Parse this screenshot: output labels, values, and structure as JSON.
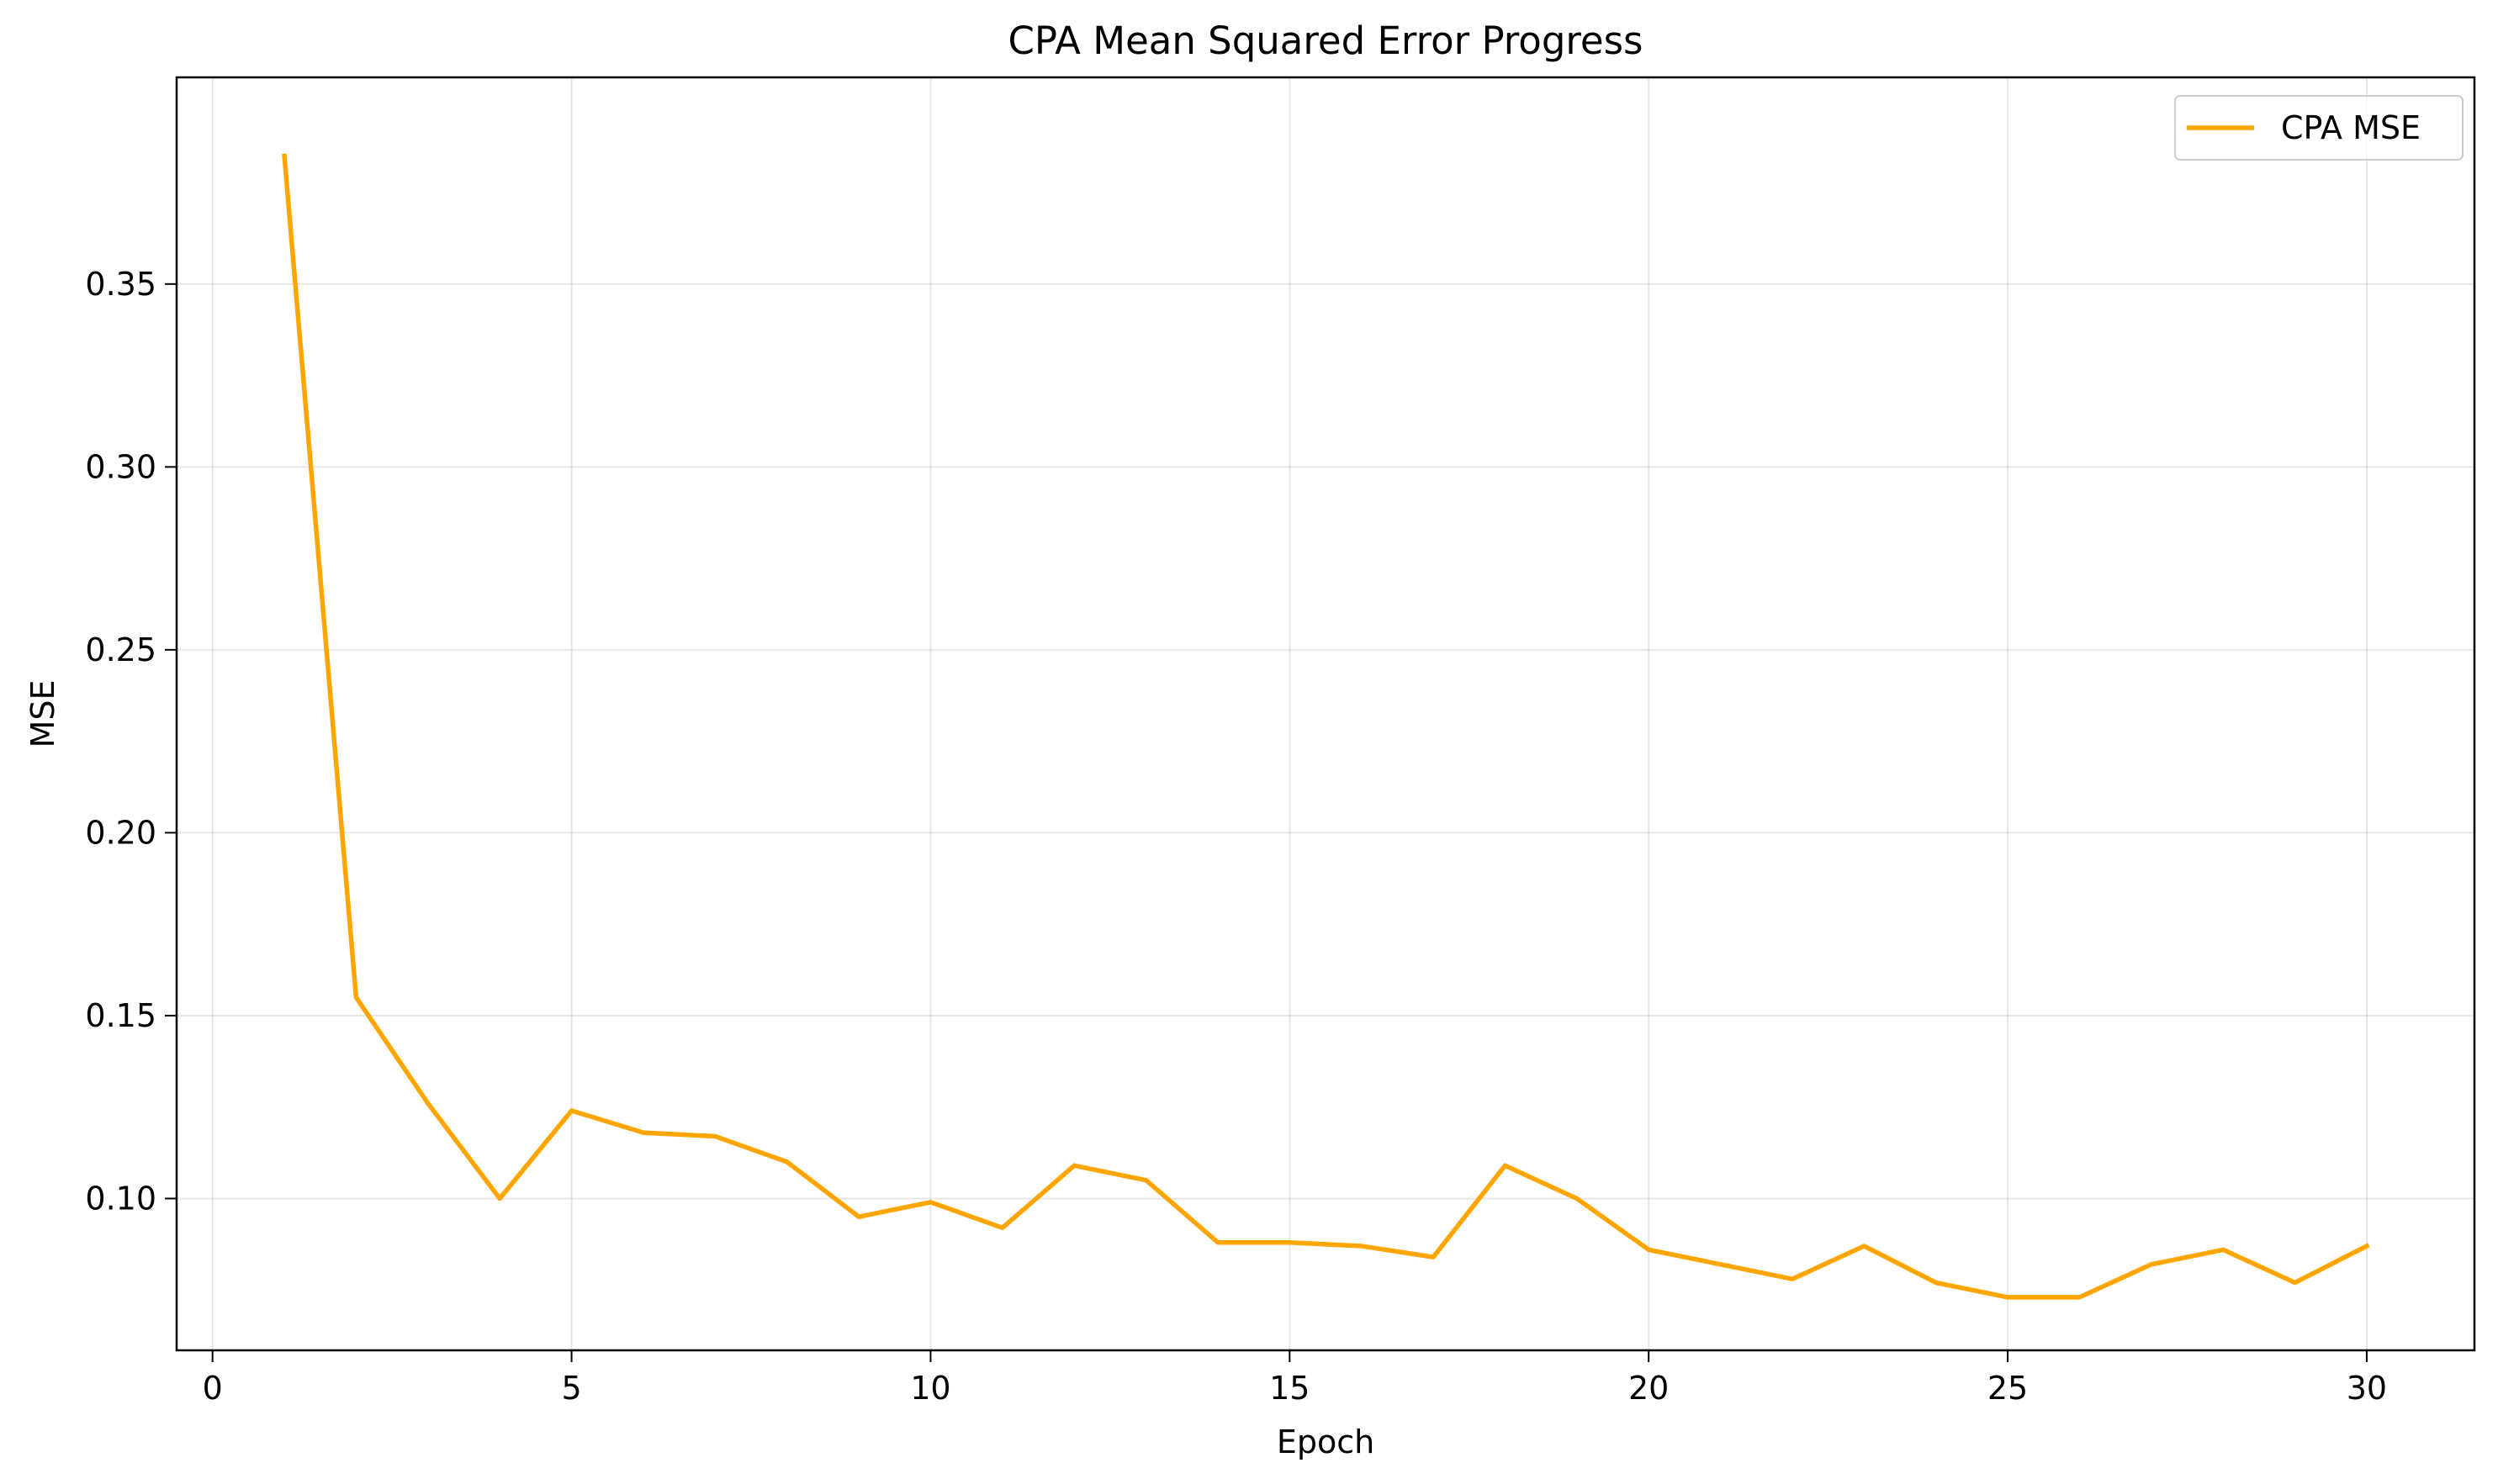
{
  "chart_data": {
    "type": "line",
    "title": "CPA Mean Squared Error Progress",
    "xlabel": "Epoch",
    "ylabel": "MSE",
    "xlim": [
      -0.5,
      31.5
    ],
    "ylim": [
      0.0585,
      0.4065
    ],
    "xticks": [
      0,
      5,
      10,
      15,
      20,
      25,
      30
    ],
    "xtick_labels": [
      "0",
      "5",
      "10",
      "15",
      "20",
      "25",
      "30"
    ],
    "yticks": [
      0.1,
      0.15,
      0.2,
      0.25,
      0.3,
      0.35
    ],
    "ytick_labels": [
      "0.10",
      "0.15",
      "0.20",
      "0.25",
      "0.30",
      "0.35"
    ],
    "grid": true,
    "legend_position": "top-right",
    "series": [
      {
        "name": "CPA MSE",
        "color": "#FFA500",
        "x": [
          1,
          2,
          3,
          4,
          5,
          6,
          7,
          8,
          9,
          10,
          11,
          12,
          13,
          14,
          15,
          16,
          17,
          18,
          19,
          20,
          21,
          22,
          23,
          24,
          25,
          26,
          27,
          28,
          29,
          30
        ],
        "y": [
          0.385,
          0.155,
          0.126,
          0.1,
          0.124,
          0.118,
          0.117,
          0.11,
          0.095,
          0.099,
          0.092,
          0.109,
          0.105,
          0.088,
          0.088,
          0.087,
          0.084,
          0.109,
          0.1,
          0.086,
          0.082,
          0.078,
          0.087,
          0.077,
          0.073,
          0.073,
          0.082,
          0.086,
          0.077,
          0.087
        ]
      }
    ]
  }
}
